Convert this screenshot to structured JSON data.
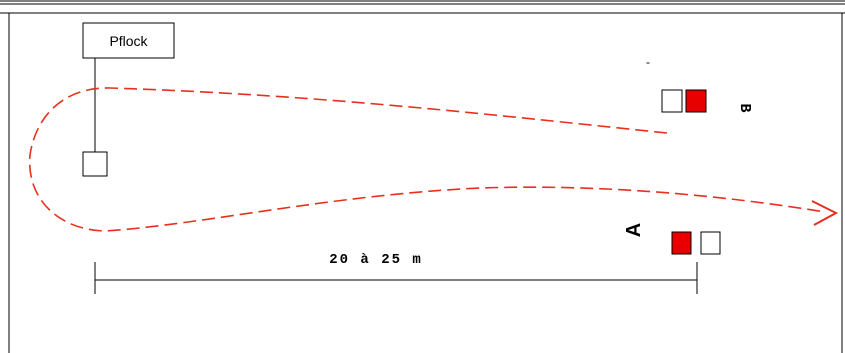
{
  "labels": {
    "pflock": "Pflock",
    "distance": "20 à 25 m",
    "marker_a": "A",
    "marker_b": "B",
    "tick": "-"
  },
  "colors": {
    "path": "#e8301e",
    "marker_fill": "#e80000",
    "outline": "#000000",
    "background": "#ffffff"
  }
}
